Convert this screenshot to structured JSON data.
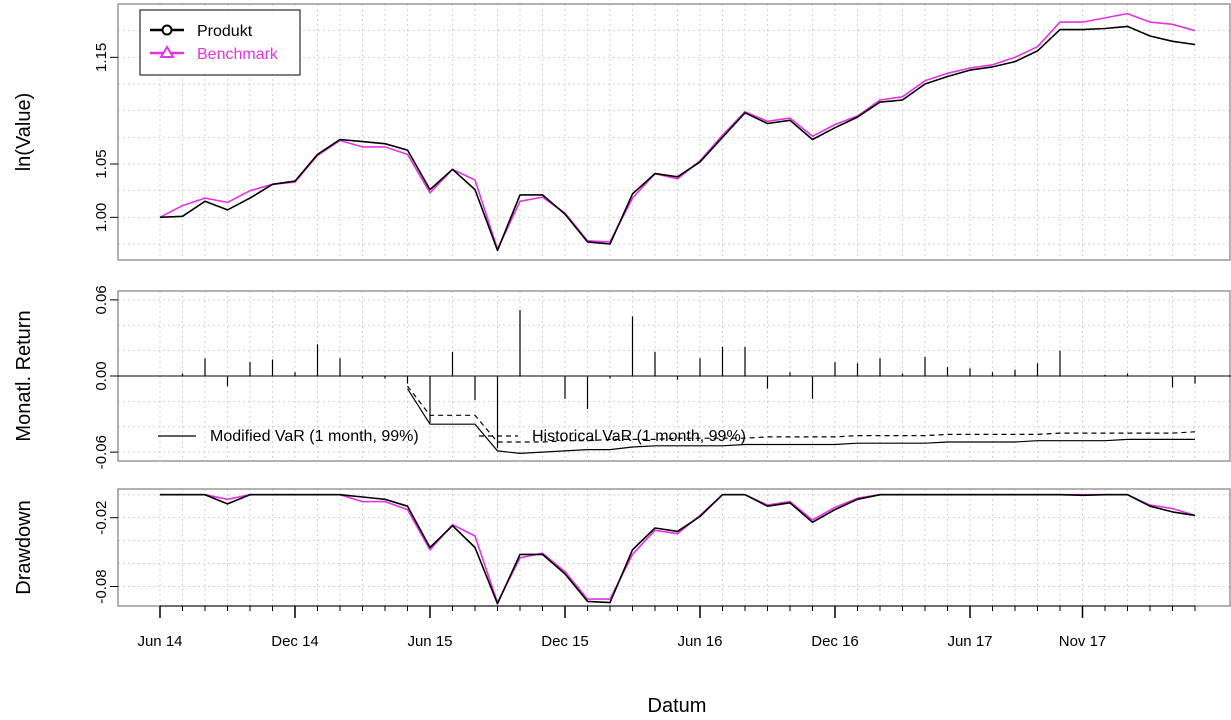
{
  "chart_data": {
    "type": "multi-panel line",
    "x": [
      "2014-06",
      "2014-07",
      "2014-08",
      "2014-09",
      "2014-10",
      "2014-11",
      "2014-12",
      "2015-01",
      "2015-02",
      "2015-03",
      "2015-04",
      "2015-05",
      "2015-06",
      "2015-07",
      "2015-08",
      "2015-09",
      "2015-10",
      "2015-11",
      "2015-12",
      "2015-01",
      "2016-02",
      "2016-03",
      "2016-04",
      "2016-05",
      "2016-06",
      "2016-07",
      "2016-08",
      "2016-09",
      "2016-10",
      "2016-11",
      "2016-12",
      "2017-01",
      "2017-02",
      "2017-03",
      "2017-04",
      "2017-05",
      "2017-06",
      "2017-07",
      "2017-08",
      "2017-09",
      "2017-10",
      "2017-11",
      "2017-12",
      "2018-01",
      "2018-02",
      "2018-03",
      "2018-04"
    ],
    "xlabel": "Datum",
    "x_tick_labels": [
      "Jun 14",
      "Dec 14",
      "Jun 15",
      "Dec 15",
      "Jun 16",
      "Dec 16",
      "Jun 17",
      "Nov 17"
    ],
    "x_tick_indices": [
      0,
      6,
      12,
      18,
      24,
      30,
      36,
      41
    ],
    "panels": [
      {
        "ylabel": "ln(Value)",
        "yticks": [
          "1.00",
          "1.05",
          "1.15"
        ],
        "ytick_values": [
          1.0,
          1.05,
          1.15
        ],
        "ylim": [
          0.96,
          1.2
        ],
        "grid": true,
        "legend_position": "top-left",
        "series": [
          {
            "name": "Produkt",
            "color": "#000000",
            "marker": "circle",
            "values": [
              1.0,
              1.001,
              1.015,
              1.007,
              1.018,
              1.031,
              1.034,
              1.059,
              1.073,
              1.071,
              1.069,
              1.063,
              1.026,
              1.045,
              1.026,
              0.969,
              1.021,
              1.021,
              1.003,
              0.977,
              0.975,
              1.022,
              1.041,
              1.038,
              1.052,
              1.075,
              1.098,
              1.088,
              1.091,
              1.073,
              1.084,
              1.094,
              1.108,
              1.11,
              1.125,
              1.132,
              1.138,
              1.141,
              1.146,
              1.156,
              1.176,
              1.176,
              1.177,
              1.179,
              1.17,
              1.165,
              1.162
            ]
          },
          {
            "name": "Benchmark",
            "color": "#e333e3",
            "marker": "triangle",
            "values": [
              1.0,
              1.011,
              1.018,
              1.014,
              1.025,
              1.031,
              1.033,
              1.058,
              1.072,
              1.066,
              1.066,
              1.059,
              1.023,
              1.045,
              1.035,
              0.97,
              1.015,
              1.019,
              1.004,
              0.978,
              0.977,
              1.018,
              1.041,
              1.036,
              1.053,
              1.077,
              1.099,
              1.09,
              1.093,
              1.076,
              1.087,
              1.095,
              1.11,
              1.113,
              1.128,
              1.135,
              1.14,
              1.143,
              1.15,
              1.16,
              1.183,
              1.183,
              1.187,
              1.191,
              1.183,
              1.181,
              1.175
            ]
          }
        ]
      },
      {
        "ylabel": "Monatl. Return",
        "yticks": [
          "0.06",
          "0.00",
          "-0.06"
        ],
        "ytick_values": [
          0.06,
          0.0,
          -0.06
        ],
        "ylim": [
          -0.067,
          0.067
        ],
        "grid": true,
        "returns": [
          0.0,
          0.002,
          0.014,
          -0.008,
          0.011,
          0.013,
          0.003,
          0.025,
          0.014,
          -0.002,
          -0.002,
          -0.006,
          -0.037,
          0.019,
          -0.019,
          -0.057,
          0.052,
          0.0,
          -0.018,
          -0.026,
          -0.002,
          0.047,
          0.019,
          -0.003,
          0.014,
          0.023,
          0.023,
          -0.01,
          0.003,
          -0.018,
          0.011,
          0.01,
          0.014,
          0.002,
          0.015,
          0.007,
          0.006,
          0.003,
          0.005,
          0.01,
          0.02,
          0.0,
          0.001,
          0.002,
          0.0,
          -0.009,
          -0.006
        ],
        "var_lines": [
          {
            "name": "Modified VaR (1 month, 99%)",
            "style": "solid",
            "start_index": 11,
            "values": [
              -0.01,
              -0.038,
              -0.038,
              -0.038,
              -0.059,
              -0.061,
              -0.06,
              -0.059,
              -0.058,
              -0.058,
              -0.056,
              -0.055,
              -0.055,
              -0.055,
              -0.055,
              -0.054,
              -0.054,
              -0.054,
              -0.054,
              -0.054,
              -0.053,
              -0.053,
              -0.053,
              -0.053,
              -0.052,
              -0.052,
              -0.052,
              -0.052,
              -0.051,
              -0.051,
              -0.051,
              -0.051,
              -0.05,
              -0.05,
              -0.05,
              -0.05
            ]
          },
          {
            "name": "Historical VaR (1 month, 99%)",
            "style": "dashed",
            "start_index": 11,
            "values": [
              -0.008,
              -0.031,
              -0.031,
              -0.031,
              -0.052,
              -0.052,
              -0.052,
              -0.051,
              -0.051,
              -0.05,
              -0.05,
              -0.05,
              -0.049,
              -0.049,
              -0.049,
              -0.049,
              -0.048,
              -0.048,
              -0.048,
              -0.048,
              -0.047,
              -0.047,
              -0.047,
              -0.047,
              -0.046,
              -0.046,
              -0.046,
              -0.046,
              -0.046,
              -0.045,
              -0.045,
              -0.045,
              -0.045,
              -0.045,
              -0.045,
              -0.044
            ]
          }
        ]
      },
      {
        "ylabel": "Drawdown",
        "yticks": [
          "-0.02",
          "-0.08"
        ],
        "ytick_values": [
          -0.02,
          -0.08
        ],
        "ylim": [
          -0.097,
          0.005
        ],
        "grid": true,
        "series": [
          {
            "name": "Produkt",
            "color": "#000000",
            "values": [
              0.0,
              0.0,
              0.0,
              -0.008,
              0.0,
              0.0,
              0.0,
              0.0,
              0.0,
              -0.002,
              -0.004,
              -0.01,
              -0.046,
              -0.027,
              -0.046,
              -0.095,
              -0.052,
              -0.052,
              -0.069,
              -0.093,
              -0.094,
              -0.048,
              -0.029,
              -0.032,
              -0.019,
              0.0,
              0.0,
              -0.01,
              -0.007,
              -0.024,
              -0.013,
              -0.004,
              0.0,
              0.0,
              0.0,
              0.0,
              0.0,
              0.0,
              0.0,
              0.0,
              0.0,
              -0.0005,
              0.0,
              0.0,
              -0.01,
              -0.015,
              -0.018
            ]
          },
          {
            "name": "Benchmark",
            "color": "#e333e3",
            "values": [
              0.0,
              0.0,
              0.0,
              -0.004,
              0.0,
              0.0,
              0.0,
              0.0,
              0.0,
              -0.006,
              -0.006,
              -0.013,
              -0.048,
              -0.026,
              -0.036,
              -0.094,
              -0.055,
              -0.051,
              -0.067,
              -0.091,
              -0.091,
              -0.052,
              -0.031,
              -0.034,
              -0.018,
              0.0,
              0.0,
              -0.009,
              -0.006,
              -0.022,
              -0.011,
              -0.003,
              0.0,
              0.0,
              0.0,
              0.0,
              0.0,
              0.0,
              0.0,
              0.0,
              0.0,
              0.0,
              0.0,
              0.0,
              -0.009,
              -0.012,
              -0.018
            ]
          }
        ]
      }
    ]
  }
}
